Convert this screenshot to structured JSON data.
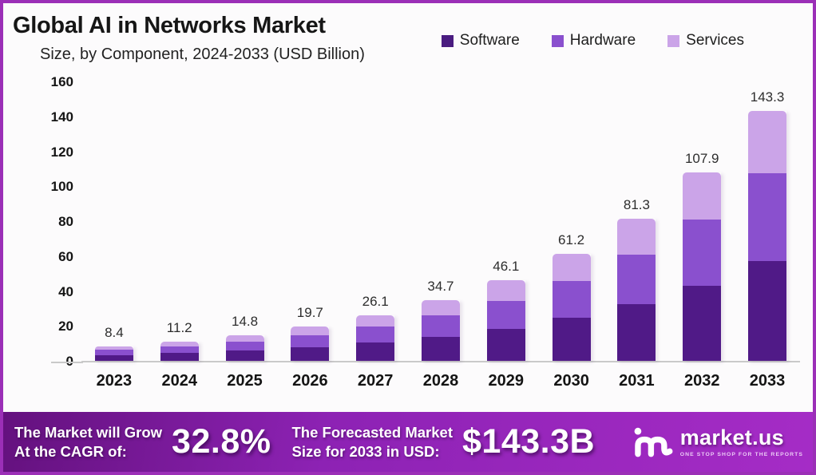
{
  "header": {
    "title": "Global AI in Networks Market",
    "subtitle": "Size, by Component, 2024-2033 (USD Billion)"
  },
  "legend": [
    {
      "label": "Software",
      "color": "#4a1c80"
    },
    {
      "label": "Hardware",
      "color": "#8a50ce"
    },
    {
      "label": "Services",
      "color": "#cba4e8"
    }
  ],
  "chart_data": {
    "type": "bar",
    "stacked": true,
    "title": "Global AI in Networks Market Size, by Component, 2024-2033 (USD Billion)",
    "categories": [
      "2023",
      "2024",
      "2025",
      "2026",
      "2027",
      "2028",
      "2029",
      "2030",
      "2031",
      "2032",
      "2033"
    ],
    "totals": [
      "8.4",
      "11.2",
      "14.8",
      "19.7",
      "26.1",
      "34.7",
      "46.1",
      "61.2",
      "81.3",
      "107.9",
      "143.3"
    ],
    "series": [
      {
        "name": "Software",
        "color": "#501a87",
        "values": [
          3.4,
          4.5,
          5.9,
          7.9,
          10.4,
          13.9,
          18.4,
          24.5,
          32.5,
          43.2,
          57.3
        ]
      },
      {
        "name": "Hardware",
        "color": "#8a50ce",
        "values": [
          2.9,
          3.9,
          5.2,
          6.9,
          9.1,
          12.1,
          16.1,
          21.4,
          28.5,
          37.8,
          50.2
        ]
      },
      {
        "name": "Services",
        "color": "#cba4e8",
        "values": [
          2.1,
          2.8,
          3.7,
          4.9,
          6.6,
          8.7,
          11.6,
          15.3,
          20.3,
          26.9,
          35.8
        ]
      }
    ],
    "y_ticks": [
      "0",
      "20",
      "40",
      "60",
      "80",
      "100",
      "120",
      "140",
      "160"
    ],
    "ylim": [
      0,
      160
    ],
    "grid": false,
    "legend_position": "top-right",
    "xlabel": "",
    "ylabel": ""
  },
  "banner": {
    "cagr_label_line1": "The Market will Grow",
    "cagr_label_line2": "At the CAGR of:",
    "cagr_value": "32.8%",
    "forecast_label_line1": "The Forecasted Market",
    "forecast_label_line2": "Size for 2033 in USD:",
    "forecast_value": "$143.3B",
    "logo_text": "market.us",
    "logo_tagline": "ONE STOP SHOP FOR THE REPORTS"
  },
  "colors": {
    "frame_border": "#9b2fb7",
    "background": "#fcfbfc",
    "banner_gradient_left": "#64117e",
    "banner_gradient_right": "#a52cc6",
    "axis_line": "#c9c9c9",
    "text_dark": "#161616"
  }
}
